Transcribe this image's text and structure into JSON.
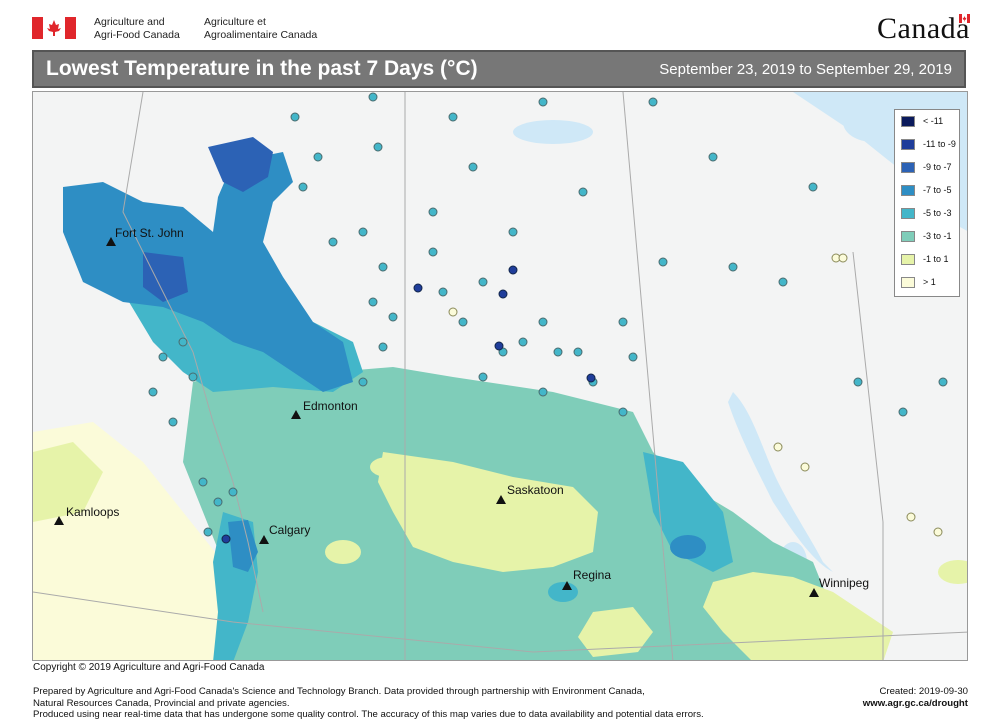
{
  "header": {
    "dept_en_line1": "Agriculture and",
    "dept_en_line2": "Agri-Food Canada",
    "dept_fr_line1": "Agriculture et",
    "dept_fr_line2": "Agroalimentaire Canada",
    "wordmark": "Canada"
  },
  "title": "Lowest Temperature in the past 7 Days (°C)",
  "date_range": "September 23, 2019 to September 29, 2019",
  "legend": [
    {
      "label": "< -11",
      "color": "#0b1a5c"
    },
    {
      "label": "-11 to -9",
      "color": "#1f3d9a"
    },
    {
      "label": "-9 to -7",
      "color": "#2c62b5"
    },
    {
      "label": "-7 to -5",
      "color": "#2e8ec4"
    },
    {
      "label": "-5 to -3",
      "color": "#43b6c9"
    },
    {
      "label": "-3 to -1",
      "color": "#7fcdb9"
    },
    {
      "label": "-1 to 1",
      "color": "#e6f3a9"
    },
    {
      "label": "> 1",
      "color": "#fbfbd9"
    }
  ],
  "cities": [
    {
      "name": "Fort St. John"
    },
    {
      "name": "Edmonton"
    },
    {
      "name": "Saskatoon"
    },
    {
      "name": "Kamloops"
    },
    {
      "name": "Calgary"
    },
    {
      "name": "Regina"
    },
    {
      "name": "Winnipeg"
    }
  ],
  "copyright": "Copyright © 2019 Agriculture and Agri-Food Canada",
  "footer": {
    "line1": "Prepared by Agriculture and Agri-Food Canada's Science and Technology Branch. Data provided through partnership with Environment Canada,",
    "line2": "Natural Resources Canada, Provincial and private agencies.",
    "line3": "Produced using near real-time data that has undergone some quality control. The accuracy of this map varies due to data availability and potential data errors.",
    "created": "Created: 2019-09-30",
    "url": "www.agr.gc.ca/drought"
  },
  "colors": {
    "water": "#cfe8f7",
    "land_nodata": "#f3f4f4",
    "title_bar": "#777777"
  }
}
